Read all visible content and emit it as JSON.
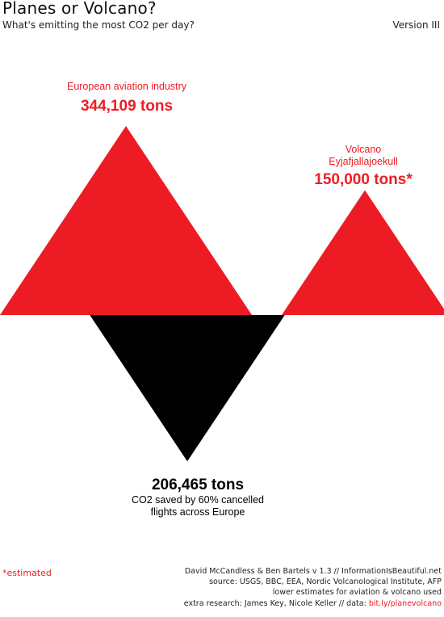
{
  "header": {
    "title": "Planes or Volcano?",
    "subtitle": "What's emitting the most CO2 per day?",
    "version": "Version III"
  },
  "colors": {
    "red": "#ed1c24",
    "black": "#000000"
  },
  "chart_data": {
    "type": "area",
    "unit": "tons CO2 per day",
    "items": [
      {
        "key": "aviation",
        "value": 344109,
        "color": "red",
        "direction": "up",
        "label_lines": [
          "European aviation industry"
        ],
        "value_label": "344,109 tons"
      },
      {
        "key": "volcano",
        "value": 150000,
        "color": "red",
        "direction": "up",
        "estimated": true,
        "label_lines": [
          "Volcano",
          "Eyjafjallajoekull"
        ],
        "value_label": "150,000 tons*"
      },
      {
        "key": "saved",
        "value": 206465,
        "color": "black",
        "direction": "down",
        "label_lines": [
          "CO2 saved by 60% cancelled",
          "flights across Europe"
        ],
        "value_label": "206,465 tons"
      }
    ]
  },
  "footer": {
    "estimated_note": "*estimated",
    "credits_line1": "David McCandless & Ben Bartels   v 1.3 // InformationIsBeautiful.net",
    "credits_line2": "source: USGS, BBC, EEA, Nordic Volcanological Institute, AFP",
    "credits_line3": "lower estimates for aviation & volcano used",
    "credits_line4_prefix": "extra research: James Key, Nicole Keller // data: ",
    "credits_link": "bit.ly/planevolcano"
  }
}
